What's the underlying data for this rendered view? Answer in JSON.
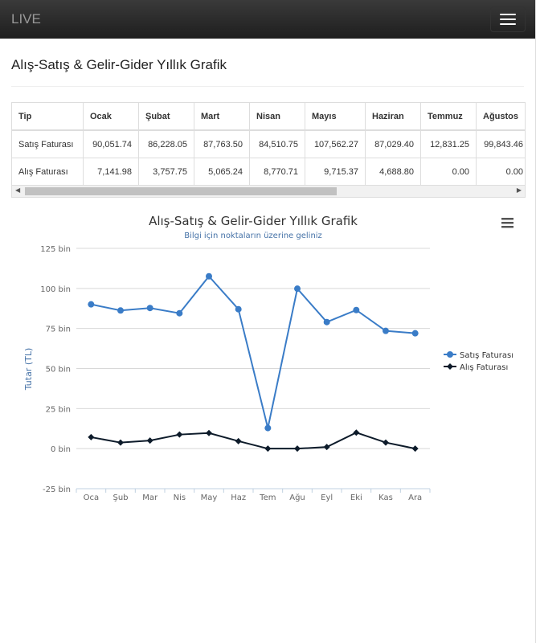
{
  "nav": {
    "brand": "LIVE"
  },
  "page_title": "Alış-Satış & Gelir-Gider Yıllık Grafik",
  "table": {
    "headers": [
      "Tip",
      "Ocak",
      "Şubat",
      "Mart",
      "Nisan",
      "Mayıs",
      "Haziran",
      "Temmuz",
      "Ağustos"
    ],
    "rows": [
      [
        "Satış Faturası",
        "90,051.74",
        "86,228.05",
        "87,763.50",
        "84,510.75",
        "107,562.27",
        "87,029.40",
        "12,831.25",
        "99,843.46"
      ],
      [
        "Alış Faturası",
        "7,141.98",
        "3,757.75",
        "5,065.24",
        "8,770.71",
        "9,715.37",
        "4,688.80",
        "0.00",
        "0.00"
      ]
    ]
  },
  "chart_data": {
    "type": "line",
    "title": "Alış-Satış & Gelir-Gider Yıllık Grafik",
    "subtitle": "Bilgi için noktaların üzerine geliniz",
    "ylabel": "Tutar (TL)",
    "xlabel": "",
    "categories": [
      "Oca",
      "Şub",
      "Mar",
      "Nis",
      "May",
      "Haz",
      "Tem",
      "Ağu",
      "Eyl",
      "Eki",
      "Kas",
      "Ara"
    ],
    "ylim": [
      -25000,
      125000
    ],
    "yticks": [
      {
        "v": 125000,
        "label": "125 bin"
      },
      {
        "v": 100000,
        "label": "100 bin"
      },
      {
        "v": 75000,
        "label": "75 bin"
      },
      {
        "v": 50000,
        "label": "50 bin"
      },
      {
        "v": 25000,
        "label": "25 bin"
      },
      {
        "v": 0,
        "label": "0 bin"
      },
      {
        "v": -25000,
        "label": "-25 bin"
      }
    ],
    "legend": "right",
    "series": [
      {
        "name": "Satış Faturası",
        "color": "#3a7cc7",
        "marker": "circle",
        "values": [
          90051.74,
          86228.05,
          87763.5,
          84510.75,
          107562.27,
          87029.4,
          12831.25,
          99843.46,
          79000,
          86500,
          73500,
          72000
        ]
      },
      {
        "name": "Alış Faturası",
        "color": "#0d1b2a",
        "marker": "diamond",
        "values": [
          7141.98,
          3757.75,
          5065.24,
          8770.71,
          9715.37,
          4688.8,
          0,
          0,
          1000,
          10000,
          3800,
          0
        ]
      }
    ]
  }
}
